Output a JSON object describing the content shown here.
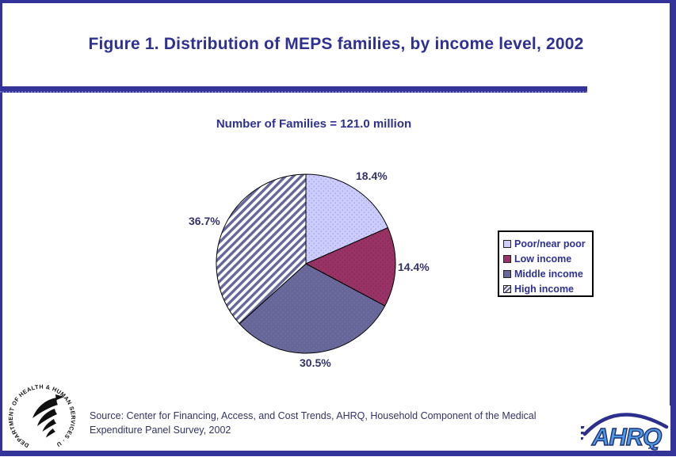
{
  "window": {
    "background": "#FFFFFF",
    "border_color": "#333399",
    "accent_color": "#2E3192"
  },
  "header": {
    "title": "Figure 1. Distribution of MEPS families, by income level, 2002"
  },
  "chart_data": {
    "type": "pie",
    "title": "Figure 1. Distribution of MEPS families, by income level, 2002",
    "subtitle": "Number of Families = 121.0 million",
    "categories": [
      "Poor/near poor",
      "Low income",
      "Middle income",
      "High income"
    ],
    "values": [
      18.4,
      14.4,
      30.5,
      36.7
    ],
    "value_labels": [
      "18.4%",
      "14.4%",
      "30.5%",
      "36.7%"
    ],
    "slice_colors": [
      "#CCCCFF",
      "#993366",
      "#666699",
      "#FFFFFF"
    ],
    "slice_patterns": [
      "fine-dots",
      "fine-dots",
      "fine-dots",
      "upward-diagonal-hatch"
    ],
    "hatch_color": "#666699",
    "outline_color": "#000000",
    "label_color": "#333366",
    "start_angle_deg": 0,
    "direction": "clockwise",
    "legend_position": "right"
  },
  "legend": {
    "items": [
      {
        "label": "Poor/near poor"
      },
      {
        "label": "Low income"
      },
      {
        "label": "Middle income"
      },
      {
        "label": "High income"
      }
    ]
  },
  "footer": {
    "source_line1": "Source: Center for Financing, Access, and Cost Trends, AHRQ, Household Component of the Medical",
    "source_line2": "Expenditure Panel Survey, 2002"
  },
  "logos": {
    "hhs_ring_text": "DEPARTMENT OF HEALTH & HUMAN SERVICES · USA",
    "ahrq_text": "AHRQ"
  }
}
